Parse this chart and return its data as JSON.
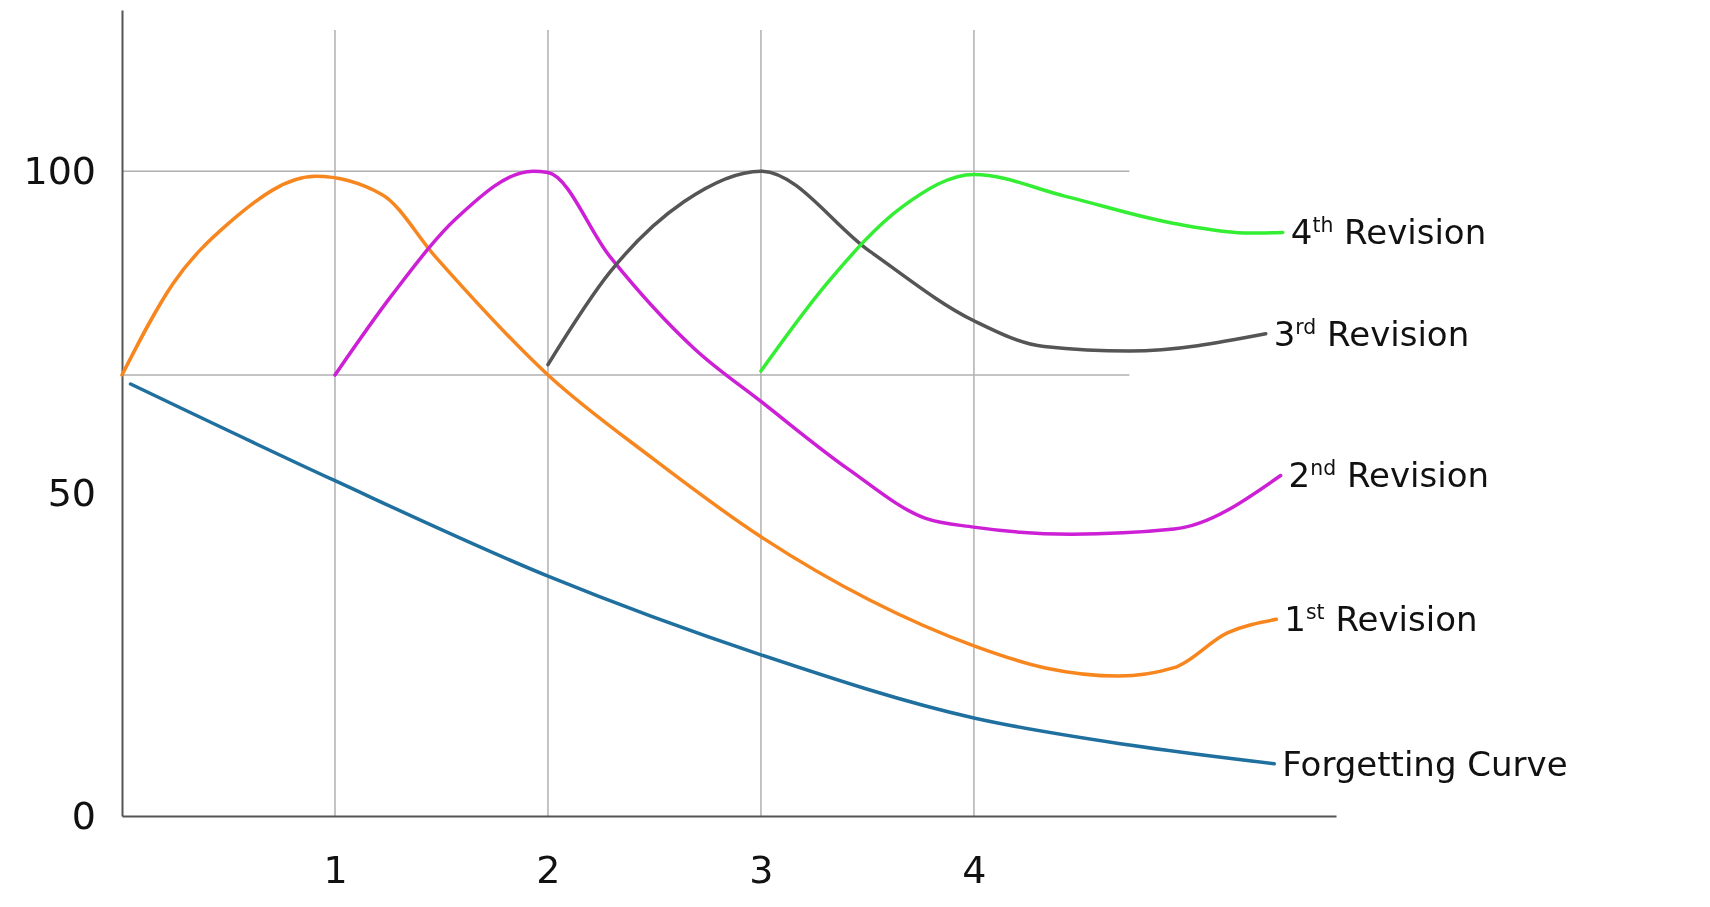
{
  "chart_data": {
    "type": "line",
    "xlim": [
      0,
      5.7
    ],
    "xticks": [
      1,
      2,
      3,
      4
    ],
    "ylim": [
      0,
      125
    ],
    "yticks": [
      0,
      50,
      100
    ],
    "grid": "x",
    "marker": "none",
    "line_style": "solid",
    "legend": false,
    "ref_lines": [
      {
        "axis": "y",
        "value": 100,
        "color": "#b0b0b0"
      },
      {
        "axis": "y",
        "value": 68.4,
        "color": "#b0b0b0"
      }
    ],
    "series": [
      {
        "name": "Forgetting Curve",
        "color": "#1f6f9f",
        "x": [
          0.04,
          1,
          2,
          3,
          4,
          4.73,
          5.41
        ],
        "values": [
          67,
          52,
          37.2,
          25,
          15.2,
          11,
          8.1
        ]
      },
      {
        "name": "1$^{st}$   Revision",
        "color": "#f7861f",
        "x": [
          0,
          0.24,
          0.5,
          0.91,
          1.22,
          1.47,
          2,
          2.49,
          3,
          3.51,
          4,
          4.33,
          4.68,
          4.94,
          5.19,
          5.42
        ],
        "values": [
          68.4,
          82.6,
          91.9,
          99.2,
          96.4,
          86.8,
          68.4,
          55.5,
          43.3,
          33.5,
          26.4,
          23,
          21.7,
          23,
          28.4,
          30.5
        ]
      },
      {
        "name": "2$^{nd}$ Revision",
        "color": "#cc1fd6",
        "x": [
          1,
          1.27,
          1.57,
          1.93,
          2,
          2.29,
          2.69,
          3,
          3.41,
          3.77,
          4,
          4.46,
          4.94,
          5.44
        ],
        "values": [
          68.4,
          80.9,
          92.7,
          100,
          99.8,
          86.8,
          72.4,
          64.3,
          53.8,
          46.2,
          44.8,
          43.7,
          44.5,
          52.8
        ]
      },
      {
        "name": "3$^{rd}$  Revision",
        "color": "#555555",
        "x": [
          2,
          2.29,
          2.64,
          3,
          3.51,
          4,
          4.33,
          4.73,
          5.37
        ],
        "values": [
          70,
          84.3,
          95.3,
          100,
          87.6,
          76.8,
          72.8,
          72.1,
          74.8
        ]
      },
      {
        "name": "4$^{th}$ Revision",
        "color": "#33ee33",
        "x": [
          3,
          3.31,
          3.66,
          4,
          4.43,
          4.94,
          5.3,
          5.45
        ],
        "values": [
          69,
          82.6,
          94.4,
          99.5,
          96.1,
          91.9,
          90.4,
          90.5
        ]
      }
    ]
  }
}
